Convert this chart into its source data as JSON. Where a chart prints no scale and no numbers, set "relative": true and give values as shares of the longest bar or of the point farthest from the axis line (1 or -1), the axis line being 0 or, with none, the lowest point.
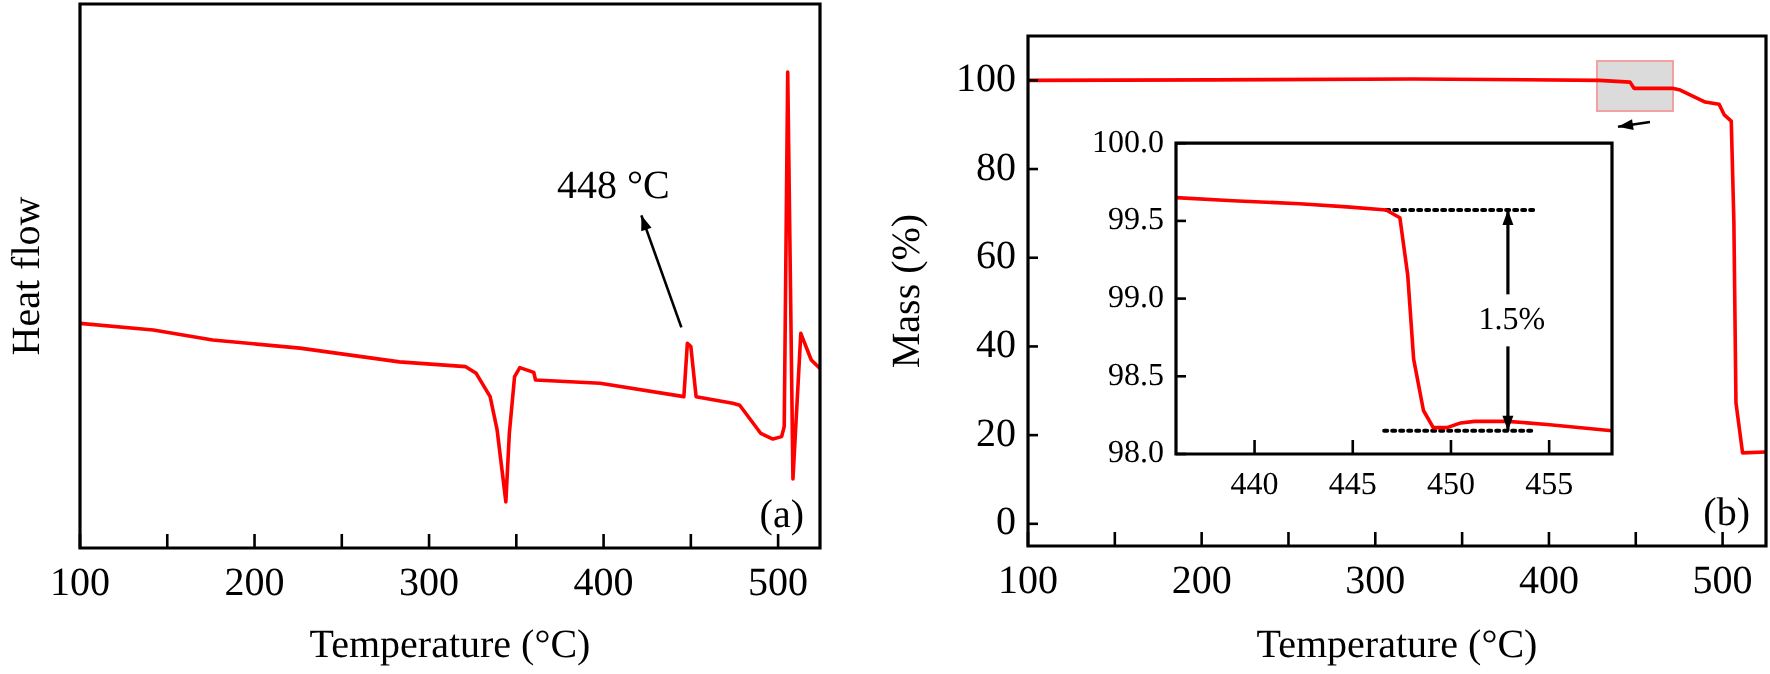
{
  "chart_data": [
    {
      "type": "line",
      "xlabel": "Temperature (°C)",
      "ylabel": "Heat flow",
      "relative": true,
      "tick_labels": "x",
      "grid": false,
      "xlim": [
        100,
        524
      ],
      "xticks": [
        100,
        {
          "value": 150,
          "label": null
        },
        200,
        {
          "value": 250,
          "label": null
        },
        300,
        {
          "value": 350,
          "label": null
        },
        400,
        {
          "value": 450,
          "label": null
        },
        500
      ],
      "x": [
        100,
        142,
        176,
        226,
        283,
        321,
        327,
        335,
        339,
        344,
        346,
        349,
        352,
        360,
        361,
        398,
        446,
        448,
        450,
        453,
        474,
        478,
        490,
        497,
        502,
        503.5,
        505.5,
        508.5,
        513,
        519,
        524
      ],
      "series": [
        {
          "color": "#ff0000",
          "values": [
            0.472,
            0.458,
            0.437,
            0.42,
            0.391,
            0.381,
            0.367,
            0.318,
            0.248,
            0.097,
            0.241,
            0.36,
            0.379,
            0.369,
            0.353,
            0.346,
            0.318,
            0.43,
            0.423,
            0.318,
            0.304,
            0.3,
            0.241,
            0.229,
            0.234,
            0.255,
            1,
            0.145,
            0.451,
            0.395,
            0.377
          ]
        }
      ],
      "annotations": [
        {
          "text": "448 °C",
          "x": 448,
          "y": 0.43
        },
        "(a)"
      ]
    },
    {
      "type": "line",
      "xlabel": "Temperature (°C)",
      "ylabel": "Mass (%)",
      "grid": false,
      "xlim": [
        100,
        525
      ],
      "ylim": [
        -5,
        110
      ],
      "xticks": [
        100,
        {
          "value": 150,
          "label": null
        },
        200,
        {
          "value": 250,
          "label": null
        },
        300,
        {
          "value": 350,
          "label": null
        },
        400,
        {
          "value": 450,
          "label": null
        },
        500
      ],
      "yticks": [
        0,
        20,
        40,
        60,
        80,
        100
      ],
      "x": [
        100,
        206.6,
        321.7,
        429,
        446.7,
        449,
        471,
        475,
        490,
        498,
        501,
        505,
        506.5,
        507.7,
        511.5,
        525
      ],
      "series": [
        {
          "color": "#ff0000",
          "values": [
            100,
            100.1,
            100.3,
            100,
            99.6,
            98.2,
            98.2,
            97.9,
            95.1,
            94.6,
            92.2,
            90.8,
            68.2,
            27.3,
            16,
            16.2
          ]
        }
      ],
      "annotations": [
        "(b)"
      ]
    },
    {
      "type": "line",
      "grid": false,
      "xlim": [
        436,
        458.2
      ],
      "ylim": [
        98,
        100
      ],
      "xticks": [
        440,
        445,
        450,
        455
      ],
      "yticks": [
        {
          "value": 98,
          "label": "98.0"
        },
        {
          "value": 98.5,
          "label": "98.5"
        },
        {
          "value": 99,
          "label": "99.0"
        },
        {
          "value": 99.5,
          "label": "99.5"
        },
        {
          "value": 100,
          "label": "100.0"
        }
      ],
      "series": [
        {
          "color": "#ff0000",
          "x": [
            436,
            438.9,
            442.3,
            444.7,
            446.7,
            447.4,
            447.8,
            448.1,
            448.6,
            449.1,
            449.8,
            450.5,
            451.2,
            452.9,
            454.9,
            458.2
          ],
          "values": [
            99.65,
            99.63,
            99.61,
            99.59,
            99.57,
            99.52,
            99.15,
            98.61,
            98.28,
            98.17,
            98.17,
            98.2,
            98.21,
            98.21,
            98.19,
            98.15
          ]
        },
        {
          "color": "#000000",
          "line_style": "dotted",
          "x": [
            446.7,
            454.4
          ],
          "values": [
            99.57,
            99.57
          ]
        },
        {
          "color": "#000000",
          "line_style": "dotted",
          "x": [
            446.6,
            454.2
          ],
          "values": [
            98.15,
            98.15
          ]
        }
      ],
      "annotations": [
        {
          "text": "1.5%",
          "x": 452.9,
          "y": 99.57
        }
      ]
    }
  ]
}
